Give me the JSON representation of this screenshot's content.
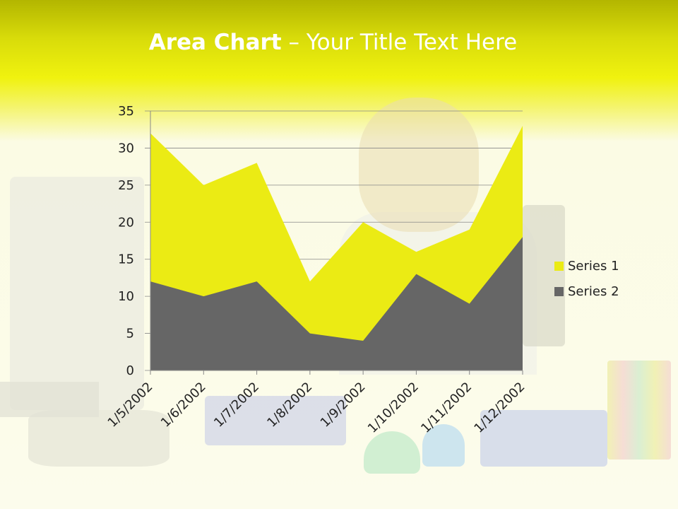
{
  "slide": {
    "title_bold": "Area Chart",
    "title_rest": " – Your Title Text Here"
  },
  "colors": {
    "series1": "#ebeb14",
    "series2": "#666666",
    "gridline": "#888888",
    "axis_text": "#222222"
  },
  "chart_data": {
    "type": "area",
    "title": "",
    "xlabel": "",
    "ylabel": "",
    "categories": [
      "1/5/2002",
      "1/6/2002",
      "1/7/2002",
      "1/8/2002",
      "1/9/2002",
      "1/10/2002",
      "1/11/2002",
      "1/12/2002"
    ],
    "series": [
      {
        "name": "Series 1",
        "values": [
          32,
          25,
          28,
          12,
          20,
          16,
          19,
          33
        ]
      },
      {
        "name": "Series 2",
        "values": [
          12,
          10,
          12,
          5,
          4,
          13,
          9,
          18
        ]
      }
    ],
    "ylim": [
      0,
      35
    ],
    "yticks": [
      0,
      5,
      10,
      15,
      20,
      25,
      30,
      35
    ],
    "grid": true,
    "legend_position": "right"
  }
}
